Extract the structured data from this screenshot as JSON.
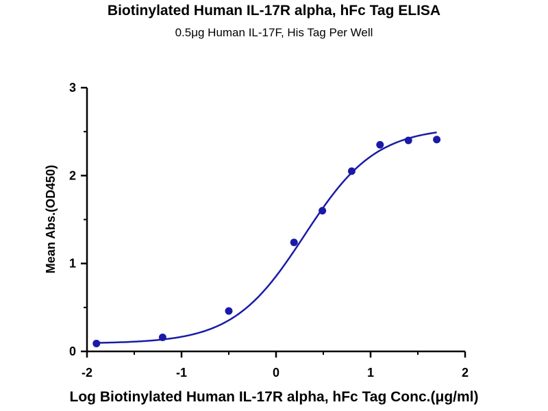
{
  "chart_data": {
    "type": "scatter",
    "title": "Biotinylated Human IL-17R alpha, hFc Tag ELISA",
    "subtitle": "0.5μg Human IL-17F, His Tag Per Well",
    "xlabel": "Log Biotinylated Human IL-17R alpha, hFc Tag Conc.(μg/ml)",
    "ylabel": "Mean Abs.(OD450)",
    "xlim": [
      -2,
      2
    ],
    "ylim": [
      0,
      3
    ],
    "xticks": [
      "-2",
      "-1",
      "0",
      "1",
      "2"
    ],
    "yticks": [
      "0",
      "1",
      "2",
      "3"
    ],
    "grid": false,
    "point_color": "#1a1aa6",
    "curve_color": "#1a1aa6",
    "points": {
      "x": [
        -1.9,
        -1.2,
        -0.5,
        0.19,
        0.49,
        0.8,
        1.1,
        1.4,
        1.7
      ],
      "y": [
        0.09,
        0.16,
        0.46,
        1.24,
        1.6,
        2.05,
        2.35,
        2.4,
        2.41
      ]
    },
    "fit_curve": {
      "model": "4PL",
      "bottom": 0.09,
      "top": 2.55,
      "log_ec50": 0.3,
      "hill_slope": 1.15,
      "x_range": [
        -1.9,
        1.7
      ]
    }
  }
}
